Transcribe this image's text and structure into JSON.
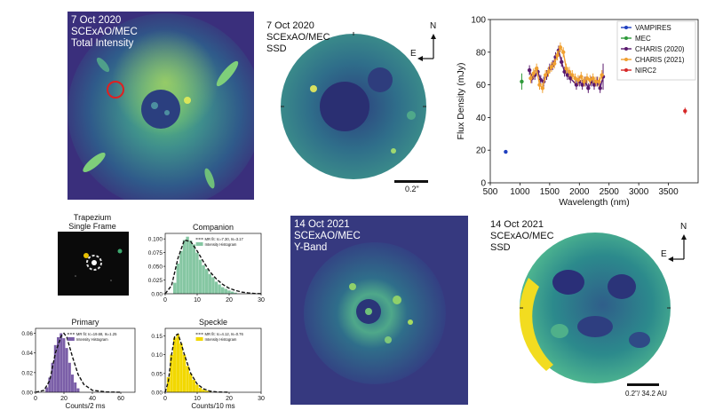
{
  "panels": {
    "total_intensity": {
      "line1": "7 Oct 2020",
      "line2": "SCExAO/MEC",
      "line3": "Total Intensity"
    },
    "ssd_2020": {
      "line1": "7 Oct 2020",
      "line2": "SCExAO/MEC",
      "line3": "SSD",
      "scale": "0.2\""
    },
    "yband_2021": {
      "line1": "14 Oct 2021",
      "line2": "SCExAO/MEC",
      "line3": "Y-Band"
    },
    "ssd_2021": {
      "line1": "14 Oct 2021",
      "line2": "SCExAO/MEC",
      "line3": "SSD",
      "scale": "0.2\"/ 34.2 AU"
    },
    "compass": {
      "north": "N",
      "east": "E"
    }
  },
  "trapezium": {
    "title_line1": "Trapezium",
    "title_line2": "Single Frame"
  },
  "chart_data": [
    {
      "type": "scatter",
      "xlabel": "Wavelength (nm)",
      "ylabel": "Flux Density (mJy)",
      "xlim": [
        500,
        4000
      ],
      "ylim": [
        0,
        100
      ],
      "xticks": [
        "500",
        "1000",
        "1500",
        "2000",
        "2500",
        "3000",
        "3500"
      ],
      "yticks": [
        "0",
        "20",
        "40",
        "60",
        "80",
        "100"
      ],
      "legend_position": "top-right",
      "series": [
        {
          "name": "VAMPIRES",
          "color": "#1f3fbf",
          "x": [
            760
          ],
          "y": [
            19
          ],
          "err": [
            0
          ]
        },
        {
          "name": "MEC",
          "color": "#2e9a3a",
          "x": [
            1030
          ],
          "y": [
            62
          ],
          "err": [
            5
          ]
        },
        {
          "name": "CHARIS (2020)",
          "color": "#5a1a6e",
          "x": [
            1160,
            1200,
            1250,
            1300,
            1350,
            1400,
            1450,
            1500,
            1550,
            1600,
            1650,
            1700,
            1750,
            1800,
            1850,
            1950,
            2000,
            2050,
            2100,
            2150,
            2200,
            2250,
            2300,
            2350,
            2400
          ],
          "y": [
            69,
            64,
            66,
            68,
            63,
            62,
            66,
            70,
            72,
            77,
            81,
            74,
            68,
            66,
            64,
            60,
            62,
            60,
            62,
            58,
            62,
            60,
            62,
            58,
            65
          ],
          "err": [
            3,
            3,
            3,
            3,
            3,
            3,
            3,
            3,
            3,
            3,
            3,
            3,
            3,
            3,
            3,
            3,
            3,
            3,
            3,
            3,
            3,
            3,
            3,
            3,
            8
          ]
        },
        {
          "name": "CHARIS (2021)",
          "color": "#f0a030",
          "x": [
            1180,
            1230,
            1280,
            1330,
            1380,
            1430,
            1480,
            1530,
            1580,
            1630,
            1680,
            1730,
            1780,
            1830,
            1880,
            1930,
            1980,
            2030,
            2080,
            2130,
            2180,
            2230,
            2280,
            2330,
            2380
          ],
          "y": [
            64,
            67,
            70,
            60,
            58,
            66,
            68,
            71,
            73,
            78,
            83,
            80,
            70,
            68,
            66,
            64,
            63,
            65,
            62,
            64,
            63,
            64,
            62,
            62,
            66
          ],
          "err": [
            3,
            3,
            3,
            3,
            3,
            3,
            3,
            3,
            3,
            3,
            3,
            3,
            3,
            3,
            3,
            3,
            3,
            3,
            3,
            3,
            3,
            3,
            3,
            3,
            3
          ]
        },
        {
          "name": "NIRC2",
          "color": "#d62828",
          "x": [
            3780
          ],
          "y": [
            44
          ],
          "err": [
            2
          ]
        }
      ]
    },
    {
      "type": "bar",
      "title": "Companion",
      "xlim": [
        0,
        30
      ],
      "ylim": [
        0,
        0.11
      ],
      "xticks": [
        "0",
        "10",
        "20",
        "30"
      ],
      "yticks": [
        "0.00",
        "0.025",
        "0.050",
        "0.075",
        "0.100"
      ],
      "legend": [
        "MR fit: Ic=7.30, Is=3.17",
        "Intensity Histogram"
      ],
      "bar_color": "#86c7a3",
      "bins_x": [
        3,
        4,
        5,
        6,
        7,
        8,
        9,
        10,
        11,
        12,
        13,
        14,
        15,
        16,
        17,
        18,
        19,
        20,
        21,
        22
      ],
      "bins_y": [
        0.02,
        0.055,
        0.078,
        0.098,
        0.104,
        0.097,
        0.09,
        0.075,
        0.062,
        0.052,
        0.045,
        0.036,
        0.03,
        0.022,
        0.017,
        0.012,
        0.009,
        0.006,
        0.004,
        0.002
      ],
      "fit_x": [
        0,
        2,
        4,
        6,
        8,
        10,
        12,
        14,
        16,
        18,
        20,
        22,
        24,
        26,
        28,
        30
      ],
      "fit_y": [
        0,
        0.015,
        0.065,
        0.098,
        0.095,
        0.078,
        0.058,
        0.04,
        0.027,
        0.017,
        0.01,
        0.006,
        0.003,
        0.0015,
        0.0005,
        0.0002
      ]
    },
    {
      "type": "bar",
      "title": "Primary",
      "xlabel": "Counts/2 ms",
      "xlim": [
        0,
        70
      ],
      "ylim": [
        0,
        0.065
      ],
      "xticks": [
        "0",
        "20",
        "40",
        "60"
      ],
      "yticks": [
        "0.00",
        "0.02",
        "0.04",
        "0.06"
      ],
      "legend": [
        "MR fit: Ic=19.68, Is=1.25",
        "Intensity Histogram"
      ],
      "bar_color": "#7b5fa8",
      "bins_x": [
        8,
        10,
        12,
        14,
        16,
        18,
        20,
        22,
        24,
        26,
        28,
        30
      ],
      "bins_y": [
        0.005,
        0.015,
        0.03,
        0.048,
        0.056,
        0.06,
        0.055,
        0.045,
        0.03,
        0.018,
        0.01,
        0.004
      ],
      "fit_x": [
        0,
        6,
        10,
        14,
        18,
        20,
        22,
        26,
        30,
        34,
        40,
        50,
        60
      ],
      "fit_y": [
        0,
        0.002,
        0.012,
        0.04,
        0.057,
        0.06,
        0.056,
        0.036,
        0.018,
        0.008,
        0.002,
        0.0003,
        0
      ]
    },
    {
      "type": "bar",
      "title": "Speckle",
      "xlabel": "Counts/10 ms",
      "xlim": [
        0,
        30
      ],
      "ylim": [
        0,
        0.17
      ],
      "xticks": [
        "0",
        "10",
        "20",
        "30"
      ],
      "yticks": [
        "0.00",
        "0.05",
        "0.10",
        "0.15"
      ],
      "legend": [
        "MR fit: Ic=4.12, Is=0.76",
        "Intensity Histogram"
      ],
      "bar_color": "#f2d800",
      "bins_x": [
        1,
        2,
        3,
        4,
        5,
        6,
        7,
        8,
        9,
        10,
        11,
        12,
        13,
        14
      ],
      "bins_y": [
        0.04,
        0.1,
        0.145,
        0.155,
        0.13,
        0.1,
        0.07,
        0.05,
        0.033,
        0.02,
        0.012,
        0.007,
        0.004,
        0.002
      ],
      "fit_x": [
        0,
        1,
        2,
        3,
        4,
        5,
        6,
        8,
        10,
        12,
        14,
        16,
        20
      ],
      "fit_y": [
        0,
        0.03,
        0.1,
        0.15,
        0.155,
        0.13,
        0.1,
        0.05,
        0.022,
        0.009,
        0.003,
        0.001,
        0
      ]
    }
  ]
}
